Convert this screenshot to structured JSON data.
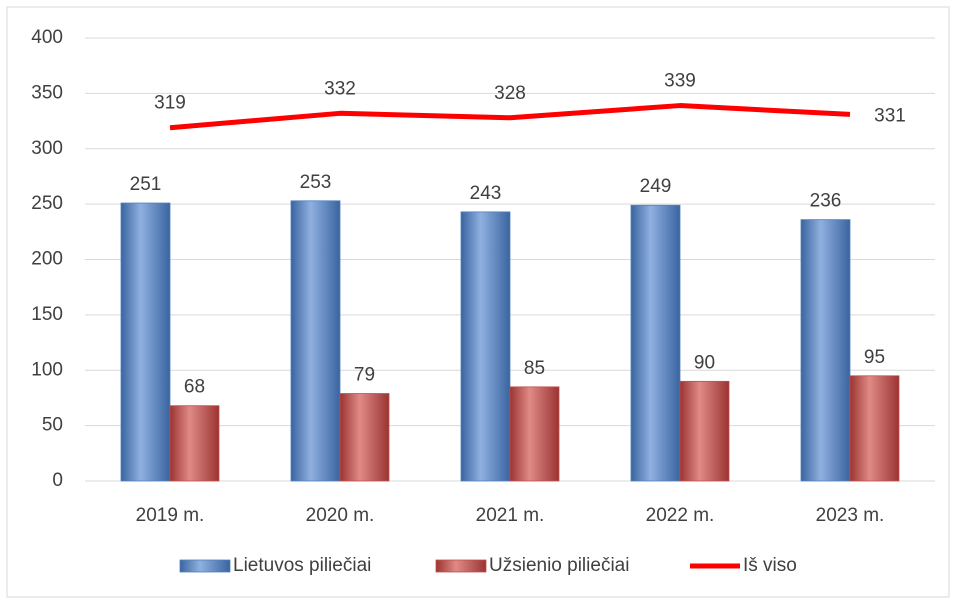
{
  "chart_data": {
    "type": "bar",
    "categories": [
      "2019 m.",
      "2020 m.",
      "2021 m.",
      "2022 m.",
      "2023 m."
    ],
    "series": [
      {
        "name": "Lietuvos piliečiai",
        "color": "#4f81bd",
        "values": [
          251,
          253,
          243,
          249,
          236
        ]
      },
      {
        "name": "Užsienio piliečiai",
        "color": "#c0504d",
        "values": [
          68,
          79,
          85,
          90,
          95
        ]
      },
      {
        "name": "Iš viso",
        "color": "#ff0000",
        "type": "line",
        "values": [
          319,
          332,
          328,
          339,
          331
        ]
      }
    ],
    "ylim": [
      0,
      400
    ],
    "yticks": [
      0,
      50,
      100,
      150,
      200,
      250,
      300,
      350,
      400
    ],
    "grid": true,
    "legend": "bottom"
  }
}
